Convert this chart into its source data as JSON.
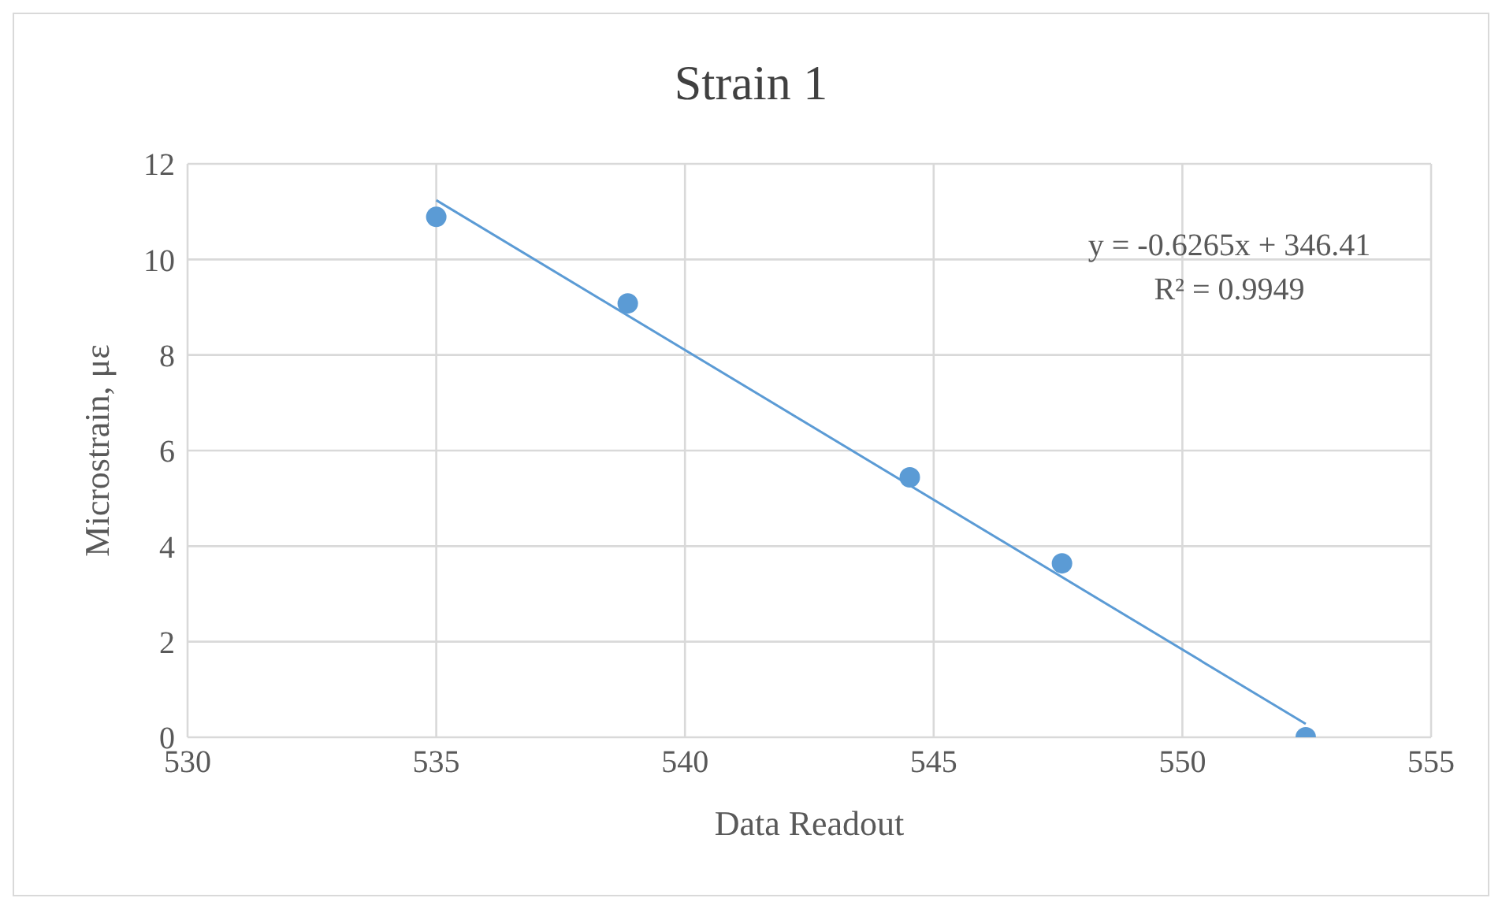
{
  "chart_data": {
    "type": "scatter",
    "title": "Strain 1",
    "xlabel": "Data Readout",
    "ylabel": "Microstrain, με",
    "series": [
      {
        "color": "#5b9bd5",
        "marker": "circle",
        "x": [
          535,
          538.85,
          544.52,
          547.58,
          552.48
        ],
        "values": [
          10.89,
          9.08,
          5.44,
          3.64,
          0
        ]
      },
      {
        "type": "line",
        "color": "#5b9bd5",
        "marker": "none",
        "x": [
          535,
          552.48
        ],
        "values": [
          11.24,
          0.28
        ]
      }
    ],
    "annotations": [
      "y = -0.6265x + 346.41",
      "R² = 0.9949"
    ],
    "xlim": [
      530,
      555
    ],
    "xticks": [
      530,
      535,
      540,
      545,
      550,
      555
    ],
    "ylim": [
      0,
      12
    ],
    "yticks": [
      0,
      2,
      4,
      6,
      8,
      10,
      12
    ],
    "grid": true,
    "legend": false
  }
}
